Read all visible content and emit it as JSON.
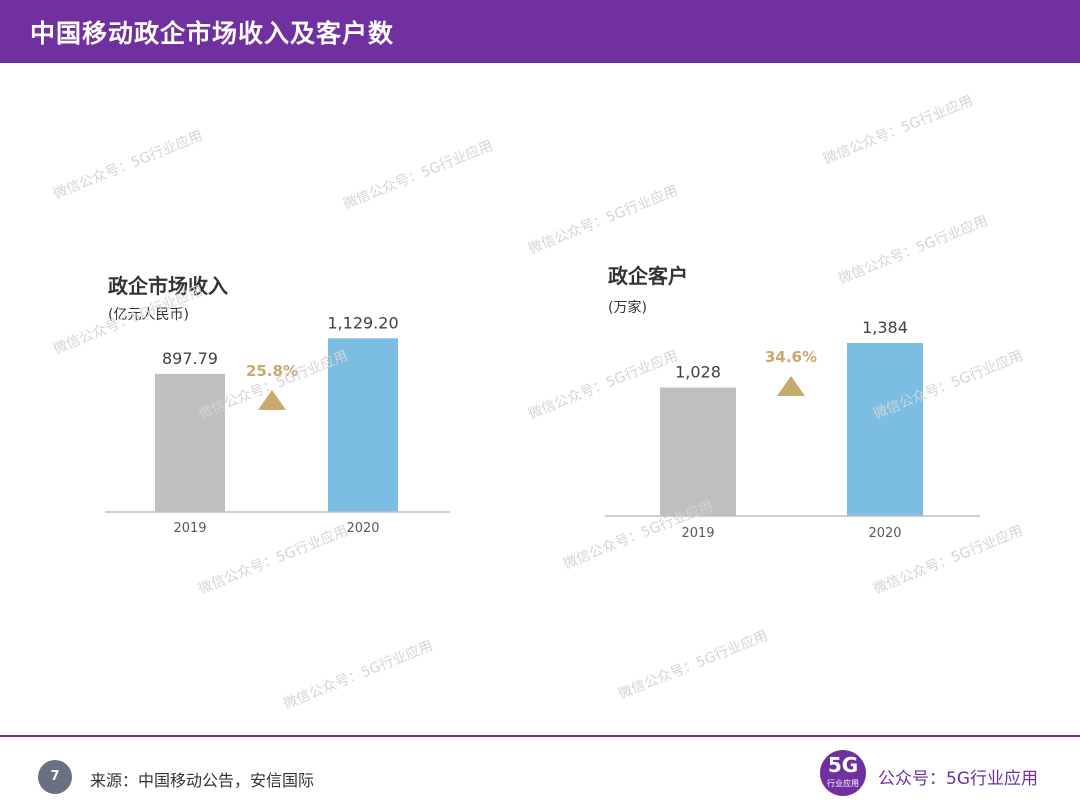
{
  "header": {
    "title": "中国移动政企市场收入及客户数"
  },
  "colors": {
    "accent": "#7030a0",
    "bar_2019": "#bfbfbf",
    "bar_2020": "#7bbde3",
    "growth": "#c8a96e"
  },
  "chart_data": [
    {
      "type": "bar",
      "title": "政企市场收入",
      "ylabel": "(亿元人民币)",
      "categories": [
        "2019",
        "2020"
      ],
      "values": [
        897.79,
        1129.2
      ],
      "value_labels": [
        "897.79",
        "1,129.20"
      ],
      "growth_label": "25.8%",
      "ylim": [
        0,
        1300
      ],
      "grid": false,
      "legend": "none"
    },
    {
      "type": "bar",
      "title": "政企客户",
      "ylabel": "(万家)",
      "categories": [
        "2019",
        "2020"
      ],
      "values": [
        1028,
        1384
      ],
      "value_labels": [
        "1,028",
        "1,384"
      ],
      "growth_label": "34.6%",
      "ylim": [
        0,
        1600
      ],
      "grid": false,
      "legend": "none"
    }
  ],
  "watermark": {
    "text": "微信公众号：5G行业应用"
  },
  "footer": {
    "page_number": "7",
    "source": "来源：中国移动公告，安信国际",
    "logo_main": "5G",
    "logo_sub": "行业应用",
    "brand": "公众号：5G行业应用"
  }
}
